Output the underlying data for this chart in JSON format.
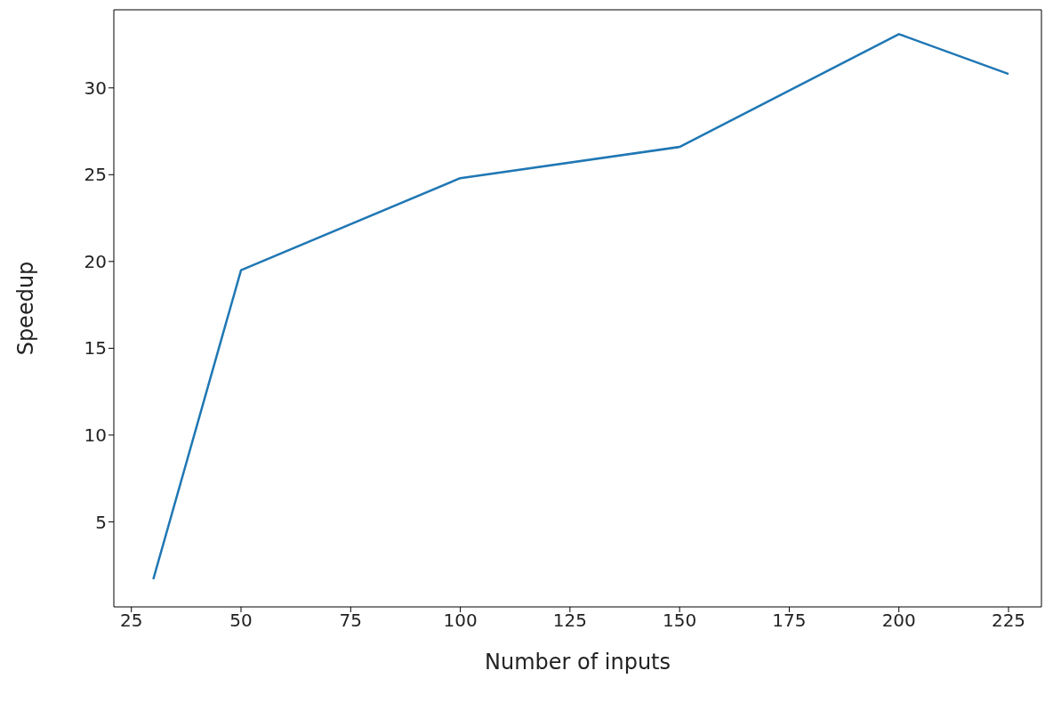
{
  "chart_data": {
    "type": "line",
    "xlabel": "Number of inputs",
    "ylabel": "Speedup",
    "x": [
      30,
      50,
      100,
      150,
      200,
      225
    ],
    "series": [
      {
        "color": "#1f77b4",
        "values": [
          1.7,
          19.5,
          24.8,
          26.6,
          33.1,
          30.8
        ]
      }
    ],
    "xlim": [
      21,
      232.5
    ],
    "xticks": [
      25,
      50,
      75,
      100,
      125,
      150,
      175,
      200,
      225
    ],
    "ylim": [
      0.1,
      34.5
    ],
    "yticks": [
      5,
      10,
      15,
      20,
      25,
      30
    ],
    "grid": false,
    "legend": false,
    "marker": "none",
    "line_style": "solid"
  }
}
